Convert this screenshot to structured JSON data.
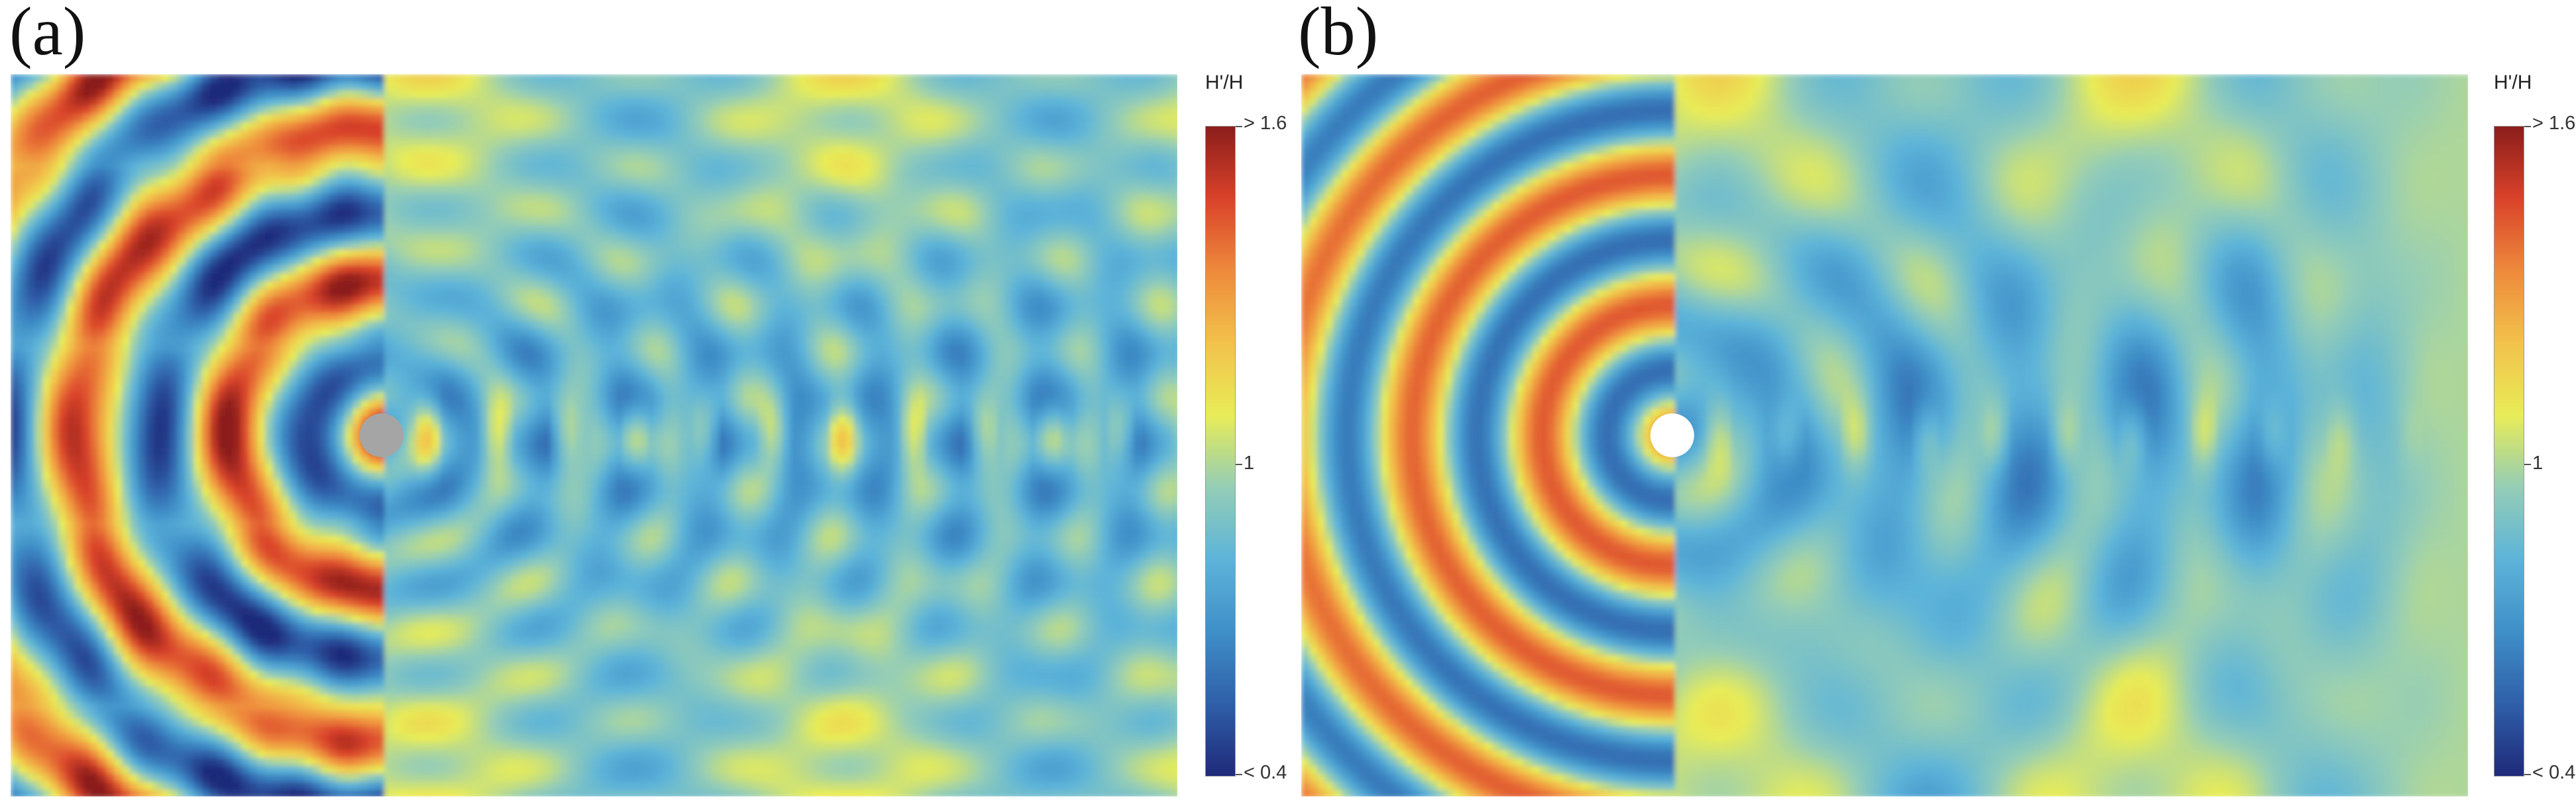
{
  "chart_data": [
    {
      "type": "heatmap",
      "panel_label": "(a)",
      "colorbar": {
        "title": "H'/H",
        "max_label": "> 1.6",
        "mid_label": "1",
        "min_label": "< 0.4",
        "range": [
          0.4,
          1.6
        ]
      },
      "colors": [
        "#1f2a7a",
        "#2f5fa8",
        "#3f8fc8",
        "#5db4d9",
        "#95cdb6",
        "#e8ec57",
        "#f2c24b",
        "#ee8a3c",
        "#d9422a",
        "#8b1d1b"
      ],
      "obstacle": {
        "color": "#a5a5a5"
      },
      "max_relative_wave_height": 1.6
    },
    {
      "type": "heatmap",
      "panel_label": "(b)",
      "colorbar": {
        "title": "H'/H",
        "max_label": "> 1.6",
        "mid_label": "1",
        "min_label": "< 0.4",
        "range": [
          0.4,
          1.6
        ]
      },
      "colors": [
        "#1f2a7a",
        "#2f5fa8",
        "#3f8fc8",
        "#5db4d9",
        "#95cdb6",
        "#e8ec57",
        "#f2c24b",
        "#ee8a3c",
        "#d9422a",
        "#8b1d1b"
      ],
      "obstacle": {
        "color": "#ffffff"
      },
      "max_relative_wave_height": 1.45
    }
  ]
}
